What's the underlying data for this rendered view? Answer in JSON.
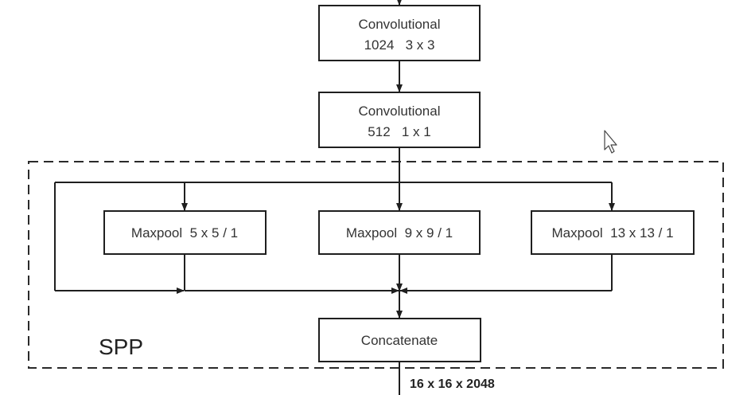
{
  "diagram": {
    "nodes": {
      "conv1": {
        "line1": "Convolutional",
        "line2": "1024   3 x 3"
      },
      "conv2": {
        "line1": "Convolutional",
        "line2": "512   1 x 1"
      },
      "maxpool1": {
        "label": "Maxpool  5 x 5 / 1"
      },
      "maxpool2": {
        "label": "Maxpool  9 x 9 / 1"
      },
      "maxpool3": {
        "label": "Maxpool  13 x 13 / 1"
      },
      "concat": {
        "label": "Concatenate"
      }
    },
    "group": {
      "label": "SPP"
    },
    "output": {
      "label": "16 x 16 x 2048"
    }
  }
}
